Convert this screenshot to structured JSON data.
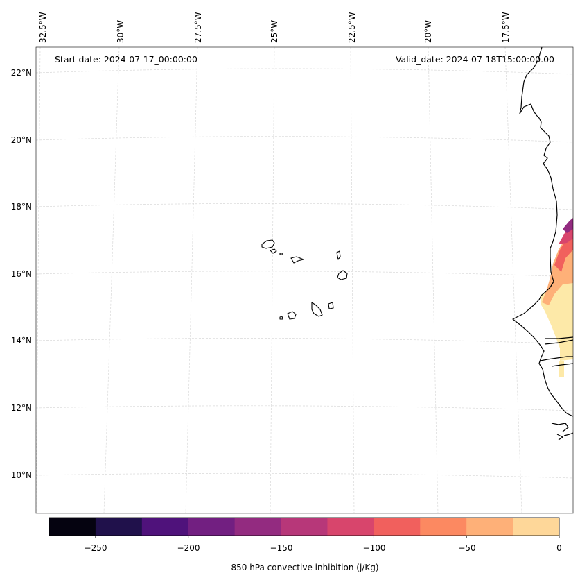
{
  "header": {
    "start_date": "Start date: 2024-07-17_00:00:00",
    "valid_date": "Valid_date: 2024-07-18T15:00:00.00"
  },
  "longitude_labels": [
    "32.5°W",
    "30°W",
    "27.5°W",
    "25°W",
    "22.5°W",
    "20°W",
    "17.5°W"
  ],
  "latitude_labels": [
    "22°N",
    "20°N",
    "18°N",
    "16°N",
    "14°N",
    "12°N",
    "10°N"
  ],
  "colorbar": {
    "label": "850 hPa convective inhibition (j/Kg)",
    "ticks": [
      "−250",
      "−200",
      "−150",
      "−100",
      "−50",
      "0"
    ],
    "levels": [
      -275,
      -250,
      -225,
      -200,
      -175,
      -150,
      -125,
      -100,
      -75,
      -50,
      -25,
      0
    ],
    "colors": [
      "#050310",
      "#20114b",
      "#4f127b",
      "#721f81",
      "#932b80",
      "#b73779",
      "#d8456c",
      "#f1605d",
      "#fc8961",
      "#feb078",
      "#fed799",
      "#fde9a8"
    ]
  },
  "map_features": {
    "coastline": "west-africa-coast",
    "islands": "cape-verde-islands"
  }
}
